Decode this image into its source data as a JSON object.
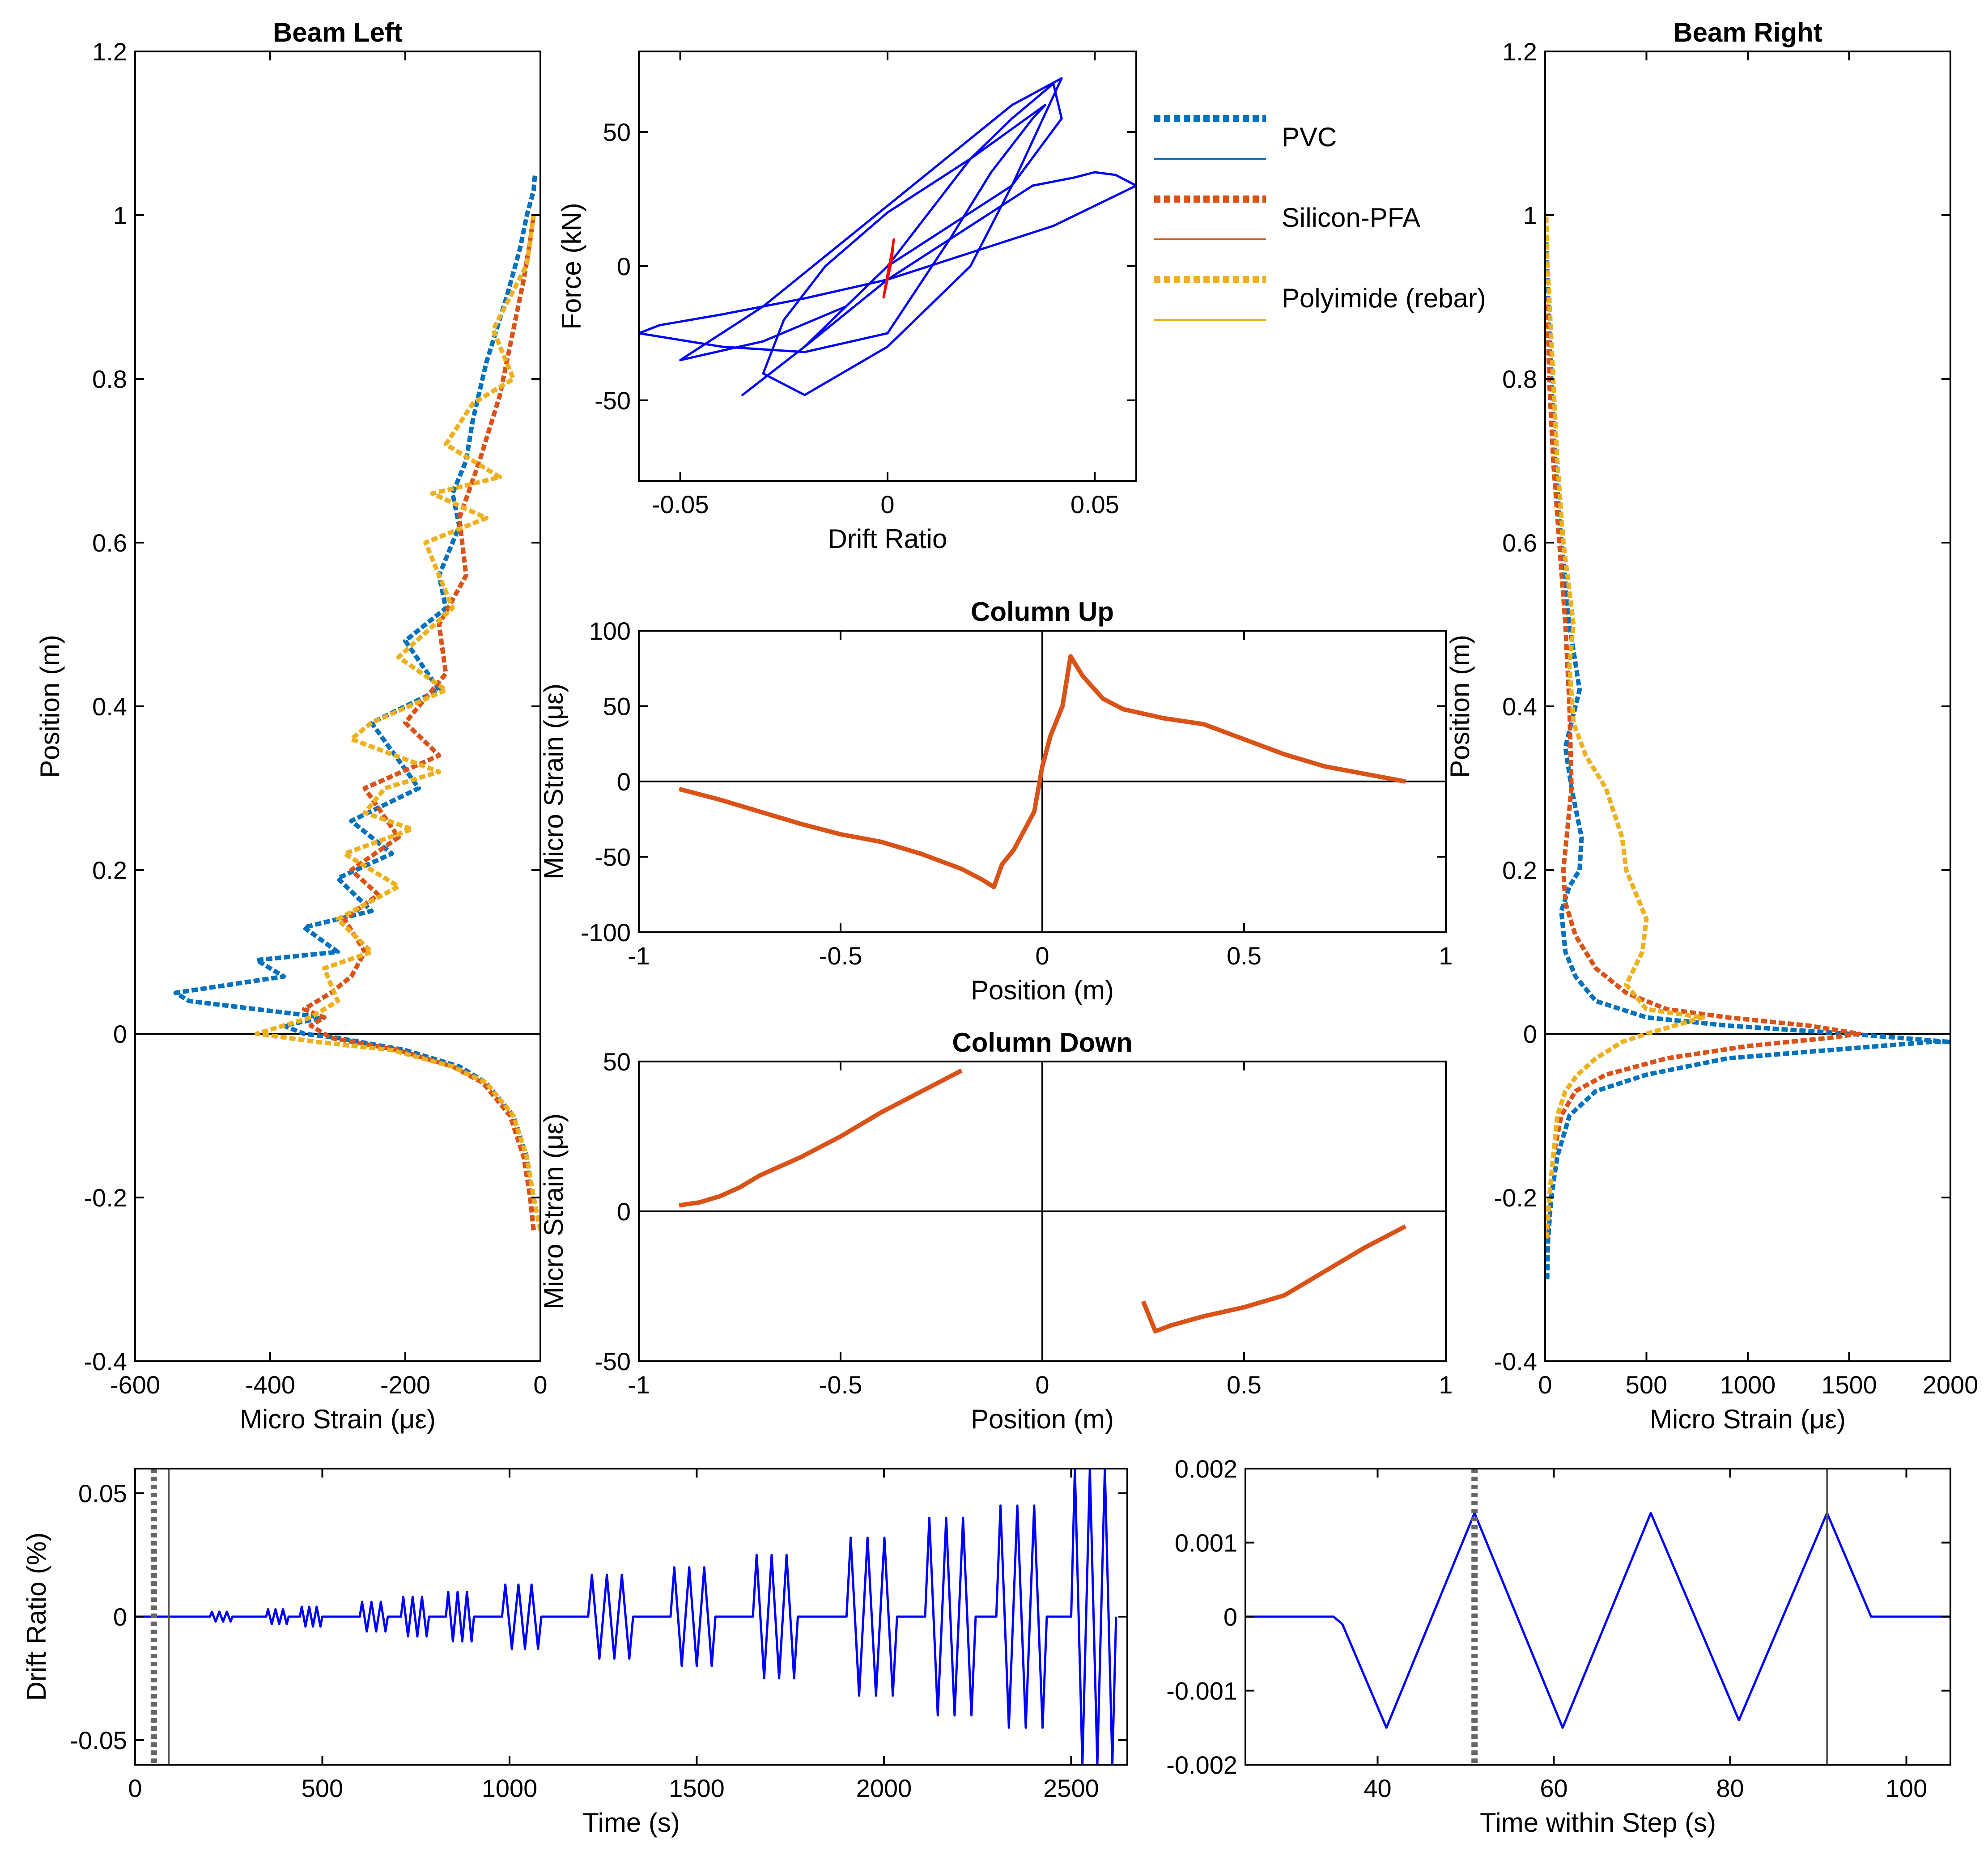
{
  "colors": {
    "pvc": "#0072BD",
    "silicon": "#D95319",
    "polyimide": "#EDB120",
    "drift": "#0000FF",
    "hyst_current": "#FF0000",
    "marker": "#666666"
  },
  "legend": {
    "items": [
      {
        "label": "PVC",
        "color": "#0072BD"
      },
      {
        "label": "Silicon-PFA",
        "color": "#D95319"
      },
      {
        "label": "Polyimide (rebar)",
        "color": "#EDB120"
      }
    ]
  },
  "chart_data": [
    {
      "id": "beam_left",
      "type": "line",
      "title": "Beam Left",
      "xlabel": "Micro Strain (με)",
      "ylabel": "Position (m)",
      "xlim": [
        -600,
        0
      ],
      "ylim": [
        -0.4,
        1.2
      ],
      "xticks": [
        -600,
        -400,
        -200,
        0
      ],
      "yticks": [
        -0.4,
        -0.2,
        0,
        0.2,
        0.4,
        0.6,
        0.8,
        1,
        1.2
      ],
      "xticklabels": [
        "-600",
        "-400",
        "-200",
        "0"
      ],
      "yticklabels": [
        "-0.4",
        "-0.2",
        "0",
        "0.2",
        "0.4",
        "0.6",
        "0.8",
        "1",
        "1.2"
      ],
      "series": [
        {
          "name": "PVC",
          "color": "#0072BD",
          "x": [
            -10,
            -15,
            -20,
            -40,
            -80,
            -120,
            -200,
            -300,
            -350,
            -380,
            -320,
            -520,
            -540,
            -380,
            -420,
            -300,
            -350,
            -250,
            -300,
            -220,
            -280,
            -180,
            -250,
            -150,
            -200,
            -140,
            -150,
            -120,
            -130,
            -110,
            -100,
            -80,
            -50,
            -30,
            -20,
            -10,
            -8
          ],
          "y": [
            -0.24,
            -0.2,
            -0.15,
            -0.1,
            -0.06,
            -0.04,
            -0.02,
            -0.005,
            0,
            0.01,
            0.02,
            0.04,
            0.05,
            0.07,
            0.09,
            0.1,
            0.13,
            0.15,
            0.19,
            0.22,
            0.26,
            0.3,
            0.38,
            0.42,
            0.48,
            0.52,
            0.56,
            0.62,
            0.66,
            0.7,
            0.75,
            0.82,
            0.9,
            0.96,
            1.0,
            1.03,
            1.05
          ]
        },
        {
          "name": "Silicon-PFA",
          "color": "#D95319",
          "x": [
            -10,
            -15,
            -25,
            -45,
            -85,
            -130,
            -210,
            -310,
            -340,
            -320,
            -350,
            -310,
            -280,
            -260,
            -290,
            -240,
            -280,
            -210,
            -260,
            -150,
            -200,
            -140,
            -150,
            -110,
            -120,
            -90,
            -60,
            -40,
            -25,
            -15,
            -10
          ],
          "y": [
            -0.24,
            -0.2,
            -0.15,
            -0.1,
            -0.06,
            -0.04,
            -0.02,
            -0.005,
            0.01,
            0.02,
            0.03,
            0.05,
            0.07,
            0.1,
            0.14,
            0.17,
            0.2,
            0.24,
            0.3,
            0.34,
            0.38,
            0.44,
            0.5,
            0.56,
            0.63,
            0.7,
            0.78,
            0.86,
            0.92,
            0.97,
            1.0
          ]
        },
        {
          "name": "Polyimide (rebar)",
          "color": "#EDB120",
          "x": [
            0,
            -10,
            -20,
            -40,
            -80,
            -130,
            -220,
            -330,
            -420,
            -340,
            -300,
            -320,
            -250,
            -300,
            -210,
            -290,
            -190,
            -260,
            -230,
            -150,
            -280,
            -250,
            -140,
            -210,
            -130,
            -170,
            -80,
            -160,
            -60,
            -140,
            -100,
            -40,
            -70,
            -20,
            -10
          ],
          "y": [
            -0.24,
            -0.2,
            -0.15,
            -0.1,
            -0.06,
            -0.04,
            -0.02,
            -0.01,
            0,
            0.02,
            0.04,
            0.08,
            0.1,
            0.14,
            0.18,
            0.22,
            0.25,
            0.27,
            0.3,
            0.32,
            0.36,
            0.38,
            0.42,
            0.46,
            0.52,
            0.6,
            0.63,
            0.66,
            0.68,
            0.72,
            0.77,
            0.8,
            0.86,
            0.94,
            1.0
          ]
        }
      ]
    },
    {
      "id": "hysteresis",
      "type": "line",
      "title": "",
      "xlabel": "Drift Ratio",
      "ylabel": "Force (kN)",
      "xlim": [
        -0.06,
        0.06
      ],
      "ylim": [
        -80,
        80
      ],
      "xticks": [
        -0.05,
        0,
        0.05
      ],
      "yticks": [
        -50,
        0,
        50
      ],
      "xticklabels": [
        "-0.05",
        "0",
        "0.05"
      ],
      "yticklabels": [
        "-50",
        "0",
        "50"
      ],
      "series": [
        {
          "name": "",
          "color": "#0000FF",
          "x": [
            0,
            0.01,
            0.02,
            0.03,
            0.04,
            0.042,
            0.03,
            0.01,
            0,
            -0.01,
            -0.02,
            -0.03,
            -0.035,
            -0.02,
            0,
            0.02,
            0.035,
            0.045,
            0.05,
            0.055,
            0.06,
            0.04,
            0.02,
            0,
            -0.02,
            -0.04,
            -0.055,
            -0.06,
            -0.04,
            -0.02,
            0,
            0.015,
            0.025,
            0.035,
            0.038,
            0.02,
            0,
            -0.015,
            -0.025,
            -0.03,
            -0.02,
            0,
            0.02,
            0.03,
            0.042,
            0.03,
            0.01,
            -0.01,
            -0.03,
            -0.045,
            -0.05,
            -0.03,
            -0.01,
            0
          ],
          "y": [
            0,
            20,
            40,
            55,
            68,
            55,
            30,
            10,
            0,
            -15,
            -30,
            -42,
            -48,
            -30,
            -5,
            15,
            30,
            33,
            35,
            34,
            30,
            15,
            5,
            -5,
            -12,
            -18,
            -22,
            -25,
            -30,
            -32,
            -25,
            10,
            35,
            55,
            60,
            40,
            20,
            0,
            -20,
            -40,
            -48,
            -30,
            0,
            30,
            70,
            60,
            35,
            10,
            -15,
            -30,
            -35,
            -28,
            -15,
            0
          ]
        },
        {
          "name": "",
          "color": "#FF0000",
          "x": [
            -0.001,
            0,
            0.001,
            0.0015,
            0.001,
            0,
            -0.001
          ],
          "y": [
            -12,
            -5,
            2,
            10,
            5,
            -3,
            -12
          ]
        }
      ]
    },
    {
      "id": "column_up",
      "type": "line",
      "title": "Column Up",
      "xlabel": "Position (m)",
      "ylabel": "Micro Strain (με)",
      "xlim": [
        -1,
        1
      ],
      "ylim": [
        -100,
        100
      ],
      "xticks": [
        -1,
        -0.5,
        0,
        0.5,
        1
      ],
      "yticks": [
        -100,
        -50,
        0,
        50,
        100
      ],
      "xticklabels": [
        "-1",
        "-0.5",
        "0",
        "0.5",
        "1"
      ],
      "yticklabels": [
        "-100",
        "-50",
        "0",
        "50",
        "100"
      ],
      "series": [
        {
          "name": "Silicon-PFA",
          "color": "#D95319",
          "x": [
            -0.9,
            -0.8,
            -0.7,
            -0.6,
            -0.5,
            -0.4,
            -0.3,
            -0.2,
            -0.15,
            -0.12,
            -0.1,
            -0.07,
            -0.05,
            -0.02,
            0,
            0.02,
            0.05,
            0.07,
            0.1,
            0.15,
            0.2,
            0.3,
            0.4,
            0.5,
            0.6,
            0.7,
            0.8,
            0.9
          ],
          "y": [
            -5,
            -12,
            -20,
            -28,
            -35,
            -40,
            -48,
            -58,
            -65,
            -70,
            -55,
            -45,
            -35,
            -20,
            10,
            30,
            50,
            83,
            70,
            55,
            48,
            42,
            38,
            28,
            18,
            10,
            5,
            0
          ]
        }
      ]
    },
    {
      "id": "column_down",
      "type": "line",
      "title": "Column Down",
      "xlabel": "Position (m)",
      "ylabel": "Micro Strain (με)",
      "xlim": [
        -1,
        1
      ],
      "ylim": [
        -50,
        50
      ],
      "xticks": [
        -1,
        -0.5,
        0,
        0.5,
        1
      ],
      "yticks": [
        -50,
        0,
        50
      ],
      "xticklabels": [
        "-1",
        "-0.5",
        "0",
        "0.5",
        "1"
      ],
      "yticklabels": [
        "-50",
        "0",
        "50"
      ],
      "series": [
        {
          "name": "Silicon-PFA",
          "color": "#D95319",
          "x": [
            -0.9,
            -0.85,
            -0.8,
            -0.75,
            -0.7,
            -0.6,
            -0.5,
            -0.4,
            -0.3,
            -0.2
          ],
          "y": [
            2,
            3,
            5,
            8,
            12,
            18,
            25,
            33,
            40,
            47
          ]
        },
        {
          "name": "Silicon-PFA",
          "color": "#D95319",
          "x": [
            0.25,
            0.28,
            0.32,
            0.4,
            0.5,
            0.6,
            0.7,
            0.8,
            0.9
          ],
          "y": [
            -30,
            -40,
            -38,
            -35,
            -32,
            -28,
            -20,
            -12,
            -5
          ]
        }
      ]
    },
    {
      "id": "beam_right",
      "type": "line",
      "title": "Beam Right",
      "xlabel": "Micro Strain (με)",
      "ylabel": "Position (m)",
      "xlim": [
        0,
        2000
      ],
      "ylim": [
        -0.4,
        1.2
      ],
      "xticks": [
        0,
        500,
        1000,
        1500,
        2000
      ],
      "yticks": [
        -0.4,
        -0.2,
        0,
        0.2,
        0.4,
        0.6,
        0.8,
        1,
        1.2
      ],
      "xticklabels": [
        "0",
        "500",
        "1000",
        "1500",
        "2000"
      ],
      "yticklabels": [
        "-0.4",
        "-0.2",
        "0",
        "0.2",
        "0.4",
        "0.6",
        "0.8",
        "1",
        "1.2"
      ],
      "series": [
        {
          "name": "PVC",
          "color": "#0072BD",
          "x": [
            10,
            15,
            30,
            60,
            120,
            250,
            500,
            900,
            1400,
            1900,
            2000,
            1500,
            900,
            500,
            250,
            150,
            100,
            80,
            120,
            170,
            180,
            130,
            100,
            150,
            170,
            120,
            80,
            50,
            30,
            15,
            5
          ],
          "y": [
            -0.3,
            -0.25,
            -0.2,
            -0.15,
            -0.1,
            -0.07,
            -0.05,
            -0.03,
            -0.02,
            -0.01,
            -0.01,
            0,
            0.01,
            0.02,
            0.04,
            0.07,
            0.1,
            0.15,
            0.18,
            0.2,
            0.24,
            0.3,
            0.35,
            0.4,
            0.42,
            0.5,
            0.6,
            0.7,
            0.8,
            0.9,
            0.97
          ]
        },
        {
          "name": "Silicon-PFA",
          "color": "#D95319",
          "x": [
            10,
            20,
            40,
            80,
            150,
            300,
            600,
            1000,
            1400,
            1550,
            1300,
            900,
            600,
            400,
            250,
            150,
            100,
            90,
            110,
            130,
            120,
            100,
            70,
            40,
            20,
            10
          ],
          "y": [
            -0.25,
            -0.2,
            -0.15,
            -0.1,
            -0.07,
            -0.05,
            -0.03,
            -0.015,
            -0.005,
            0,
            0.01,
            0.02,
            0.03,
            0.05,
            0.08,
            0.12,
            0.16,
            0.2,
            0.25,
            0.3,
            0.4,
            0.5,
            0.6,
            0.7,
            0.8,
            0.9
          ]
        },
        {
          "name": "Polyimide (rebar)",
          "color": "#EDB120",
          "x": [
            5,
            20,
            40,
            60,
            100,
            160,
            250,
            380,
            500,
            780,
            500,
            400,
            480,
            500,
            400,
            380,
            300,
            200,
            140,
            120,
            140,
            90,
            60,
            40,
            20,
            10,
            5
          ],
          "y": [
            -0.25,
            -0.2,
            -0.15,
            -0.1,
            -0.07,
            -0.05,
            -0.03,
            -0.01,
            0,
            0.02,
            0.03,
            0.06,
            0.1,
            0.14,
            0.2,
            0.24,
            0.3,
            0.34,
            0.38,
            0.45,
            0.5,
            0.6,
            0.7,
            0.8,
            0.9,
            0.95,
            1.0
          ]
        }
      ]
    },
    {
      "id": "drift_history",
      "type": "line",
      "title": "",
      "xlabel": "Time (s)",
      "ylabel": "Drift Ratio (%)",
      "xlim": [
        0,
        2650
      ],
      "ylim": [
        -0.06,
        0.06
      ],
      "xticks": [
        0,
        500,
        1000,
        1500,
        2000,
        2500
      ],
      "yticks": [
        -0.05,
        0,
        0.05
      ],
      "xticklabels": [
        "0",
        "500",
        "1000",
        "1500",
        "2000",
        "2500"
      ],
      "yticklabels": [
        "-0.05",
        "0",
        "0.05"
      ],
      "markers": [
        {
          "x": 50,
          "style": "dotted"
        },
        {
          "x": 90,
          "style": "solid"
        }
      ],
      "series": [
        {
          "name": "",
          "color": "#0000FF",
          "blocks": [
            {
              "t0": 200,
              "n": 3,
              "period": 20,
              "amp": 0.002
            },
            {
              "t0": 350,
              "n": 3,
              "period": 20,
              "amp": 0.003
            },
            {
              "t0": 440,
              "n": 3,
              "period": 20,
              "amp": 0.004
            },
            {
              "t0": 600,
              "n": 3,
              "period": 25,
              "amp": 0.006
            },
            {
              "t0": 710,
              "n": 3,
              "period": 25,
              "amp": 0.008
            },
            {
              "t0": 830,
              "n": 3,
              "period": 25,
              "amp": 0.01
            },
            {
              "t0": 980,
              "n": 3,
              "period": 35,
              "amp": 0.013
            },
            {
              "t0": 1210,
              "n": 3,
              "period": 40,
              "amp": 0.017
            },
            {
              "t0": 1430,
              "n": 3,
              "period": 40,
              "amp": 0.02
            },
            {
              "t0": 1650,
              "n": 3,
              "period": 40,
              "amp": 0.025
            },
            {
              "t0": 1900,
              "n": 3,
              "period": 45,
              "amp": 0.032
            },
            {
              "t0": 2110,
              "n": 3,
              "period": 45,
              "amp": 0.04
            },
            {
              "t0": 2300,
              "n": 3,
              "period": 45,
              "amp": 0.045
            },
            {
              "t0": 2500,
              "n": 3,
              "period": 40,
              "amp": 0.06
            }
          ]
        }
      ]
    },
    {
      "id": "step_history",
      "type": "line",
      "title": "",
      "xlabel": "Time within Step (s)",
      "ylabel": "",
      "xlim": [
        25,
        105
      ],
      "ylim": [
        -0.002,
        0.002
      ],
      "xticks": [
        40,
        60,
        80,
        100
      ],
      "yticks": [
        -0.002,
        -0.001,
        0,
        0.001,
        0.002
      ],
      "xticklabels": [
        "40",
        "60",
        "80",
        "100"
      ],
      "yticklabels": [
        "-0.002",
        "-0.001",
        "0",
        "0.001",
        "0.002"
      ],
      "markers": [
        {
          "x": 51,
          "style": "dotted"
        },
        {
          "x": 91,
          "style": "solid"
        }
      ],
      "series": [
        {
          "name": "",
          "color": "#0000FF",
          "x": [
            25,
            30,
            35,
            36,
            41,
            51,
            61,
            71,
            81,
            91,
            96,
            100,
            105
          ],
          "y": [
            0,
            0,
            0,
            -0.0001,
            -0.0015,
            0.0014,
            -0.0015,
            0.0014,
            -0.0014,
            0.0014,
            0,
            0,
            0
          ]
        }
      ]
    }
  ]
}
